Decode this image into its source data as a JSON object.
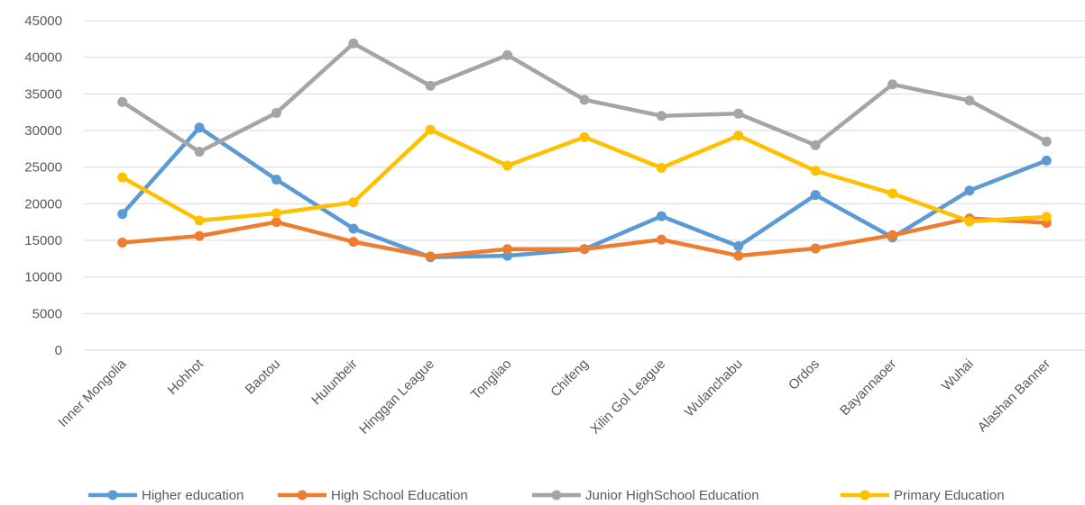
{
  "chart_data": {
    "type": "line",
    "title": "",
    "xlabel": "",
    "ylabel": "",
    "ylim": [
      0,
      45000
    ],
    "y_ticks": [
      "0",
      "5000",
      "10000",
      "15000",
      "20000",
      "25000",
      "30000",
      "35000",
      "40000",
      "45000"
    ],
    "grid": "horizontal",
    "legend_position": "bottom",
    "categories": [
      "Inner Mongolia",
      "Hohhot",
      "Baotou",
      "Hulunbeir",
      "Hinggan League",
      "Tongliao",
      "Chifeng",
      "Xilin Gol League",
      "Wulanchabu",
      "Ordos",
      "Bayannaoer",
      "Wuhai",
      "Alashan Banner"
    ],
    "series": [
      {
        "name": "Higher education",
        "color": "#5B9BD5",
        "values": [
          18600,
          30400,
          23300,
          16600,
          12700,
          12900,
          13800,
          18300,
          14200,
          21200,
          15400,
          21800,
          25900
        ]
      },
      {
        "name": "High School Education",
        "color": "#ED7D31",
        "values": [
          14700,
          15600,
          17500,
          14800,
          12800,
          13800,
          13800,
          15100,
          12900,
          13900,
          15700,
          18000,
          17400
        ]
      },
      {
        "name": "Junior HighSchool Education",
        "color": "#A5A5A5",
        "values": [
          33900,
          27100,
          32400,
          41900,
          36100,
          40300,
          34200,
          32000,
          32300,
          28000,
          36300,
          34100,
          28500
        ]
      },
      {
        "name": "Primary Education",
        "color": "#FFC000",
        "values": [
          23600,
          17700,
          18700,
          20200,
          30100,
          25200,
          29100,
          24900,
          29300,
          24500,
          21400,
          17600,
          18200
        ]
      }
    ]
  }
}
